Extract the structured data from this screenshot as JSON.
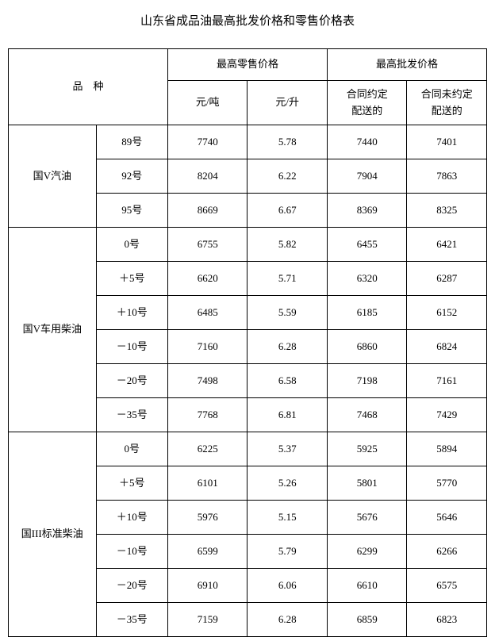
{
  "title": "山东省成品油最高批发价格和零售价格表",
  "header": {
    "category": "品　种",
    "retail_group": "最高零售价格",
    "wholesale_group": "最高批发价格",
    "yuan_per_ton": "元/吨",
    "yuan_per_liter": "元/升",
    "contract_delivery": "合同约定\n配送的",
    "no_contract_delivery": "合同未约定\n配送的"
  },
  "groups": [
    {
      "name": "国V汽油",
      "rows": [
        {
          "grade": "89号",
          "ton": "7740",
          "liter": "5.78",
          "contract": "7440",
          "nocontract": "7401"
        },
        {
          "grade": "92号",
          "ton": "8204",
          "liter": "6.22",
          "contract": "7904",
          "nocontract": "7863"
        },
        {
          "grade": "95号",
          "ton": "8669",
          "liter": "6.67",
          "contract": "8369",
          "nocontract": "8325"
        }
      ]
    },
    {
      "name": "国V车用柴油",
      "rows": [
        {
          "grade": "0号",
          "ton": "6755",
          "liter": "5.82",
          "contract": "6455",
          "nocontract": "6421"
        },
        {
          "grade": "＋5号",
          "ton": "6620",
          "liter": "5.71",
          "contract": "6320",
          "nocontract": "6287"
        },
        {
          "grade": "＋10号",
          "ton": "6485",
          "liter": "5.59",
          "contract": "6185",
          "nocontract": "6152"
        },
        {
          "grade": "－10号",
          "ton": "7160",
          "liter": "6.28",
          "contract": "6860",
          "nocontract": "6824"
        },
        {
          "grade": "－20号",
          "ton": "7498",
          "liter": "6.58",
          "contract": "7198",
          "nocontract": "7161"
        },
        {
          "grade": "－35号",
          "ton": "7768",
          "liter": "6.81",
          "contract": "7468",
          "nocontract": "7429"
        }
      ]
    },
    {
      "name": "国III标准柴油",
      "rows": [
        {
          "grade": "0号",
          "ton": "6225",
          "liter": "5.37",
          "contract": "5925",
          "nocontract": "5894"
        },
        {
          "grade": "＋5号",
          "ton": "6101",
          "liter": "5.26",
          "contract": "5801",
          "nocontract": "5770"
        },
        {
          "grade": "＋10号",
          "ton": "5976",
          "liter": "5.15",
          "contract": "5676",
          "nocontract": "5646"
        },
        {
          "grade": "－10号",
          "ton": "6599",
          "liter": "5.79",
          "contract": "6299",
          "nocontract": "6266"
        },
        {
          "grade": "－20号",
          "ton": "6910",
          "liter": "6.06",
          "contract": "6610",
          "nocontract": "6575"
        },
        {
          "grade": "－35号",
          "ton": "7159",
          "liter": "6.28",
          "contract": "6859",
          "nocontract": "6823"
        }
      ]
    }
  ]
}
